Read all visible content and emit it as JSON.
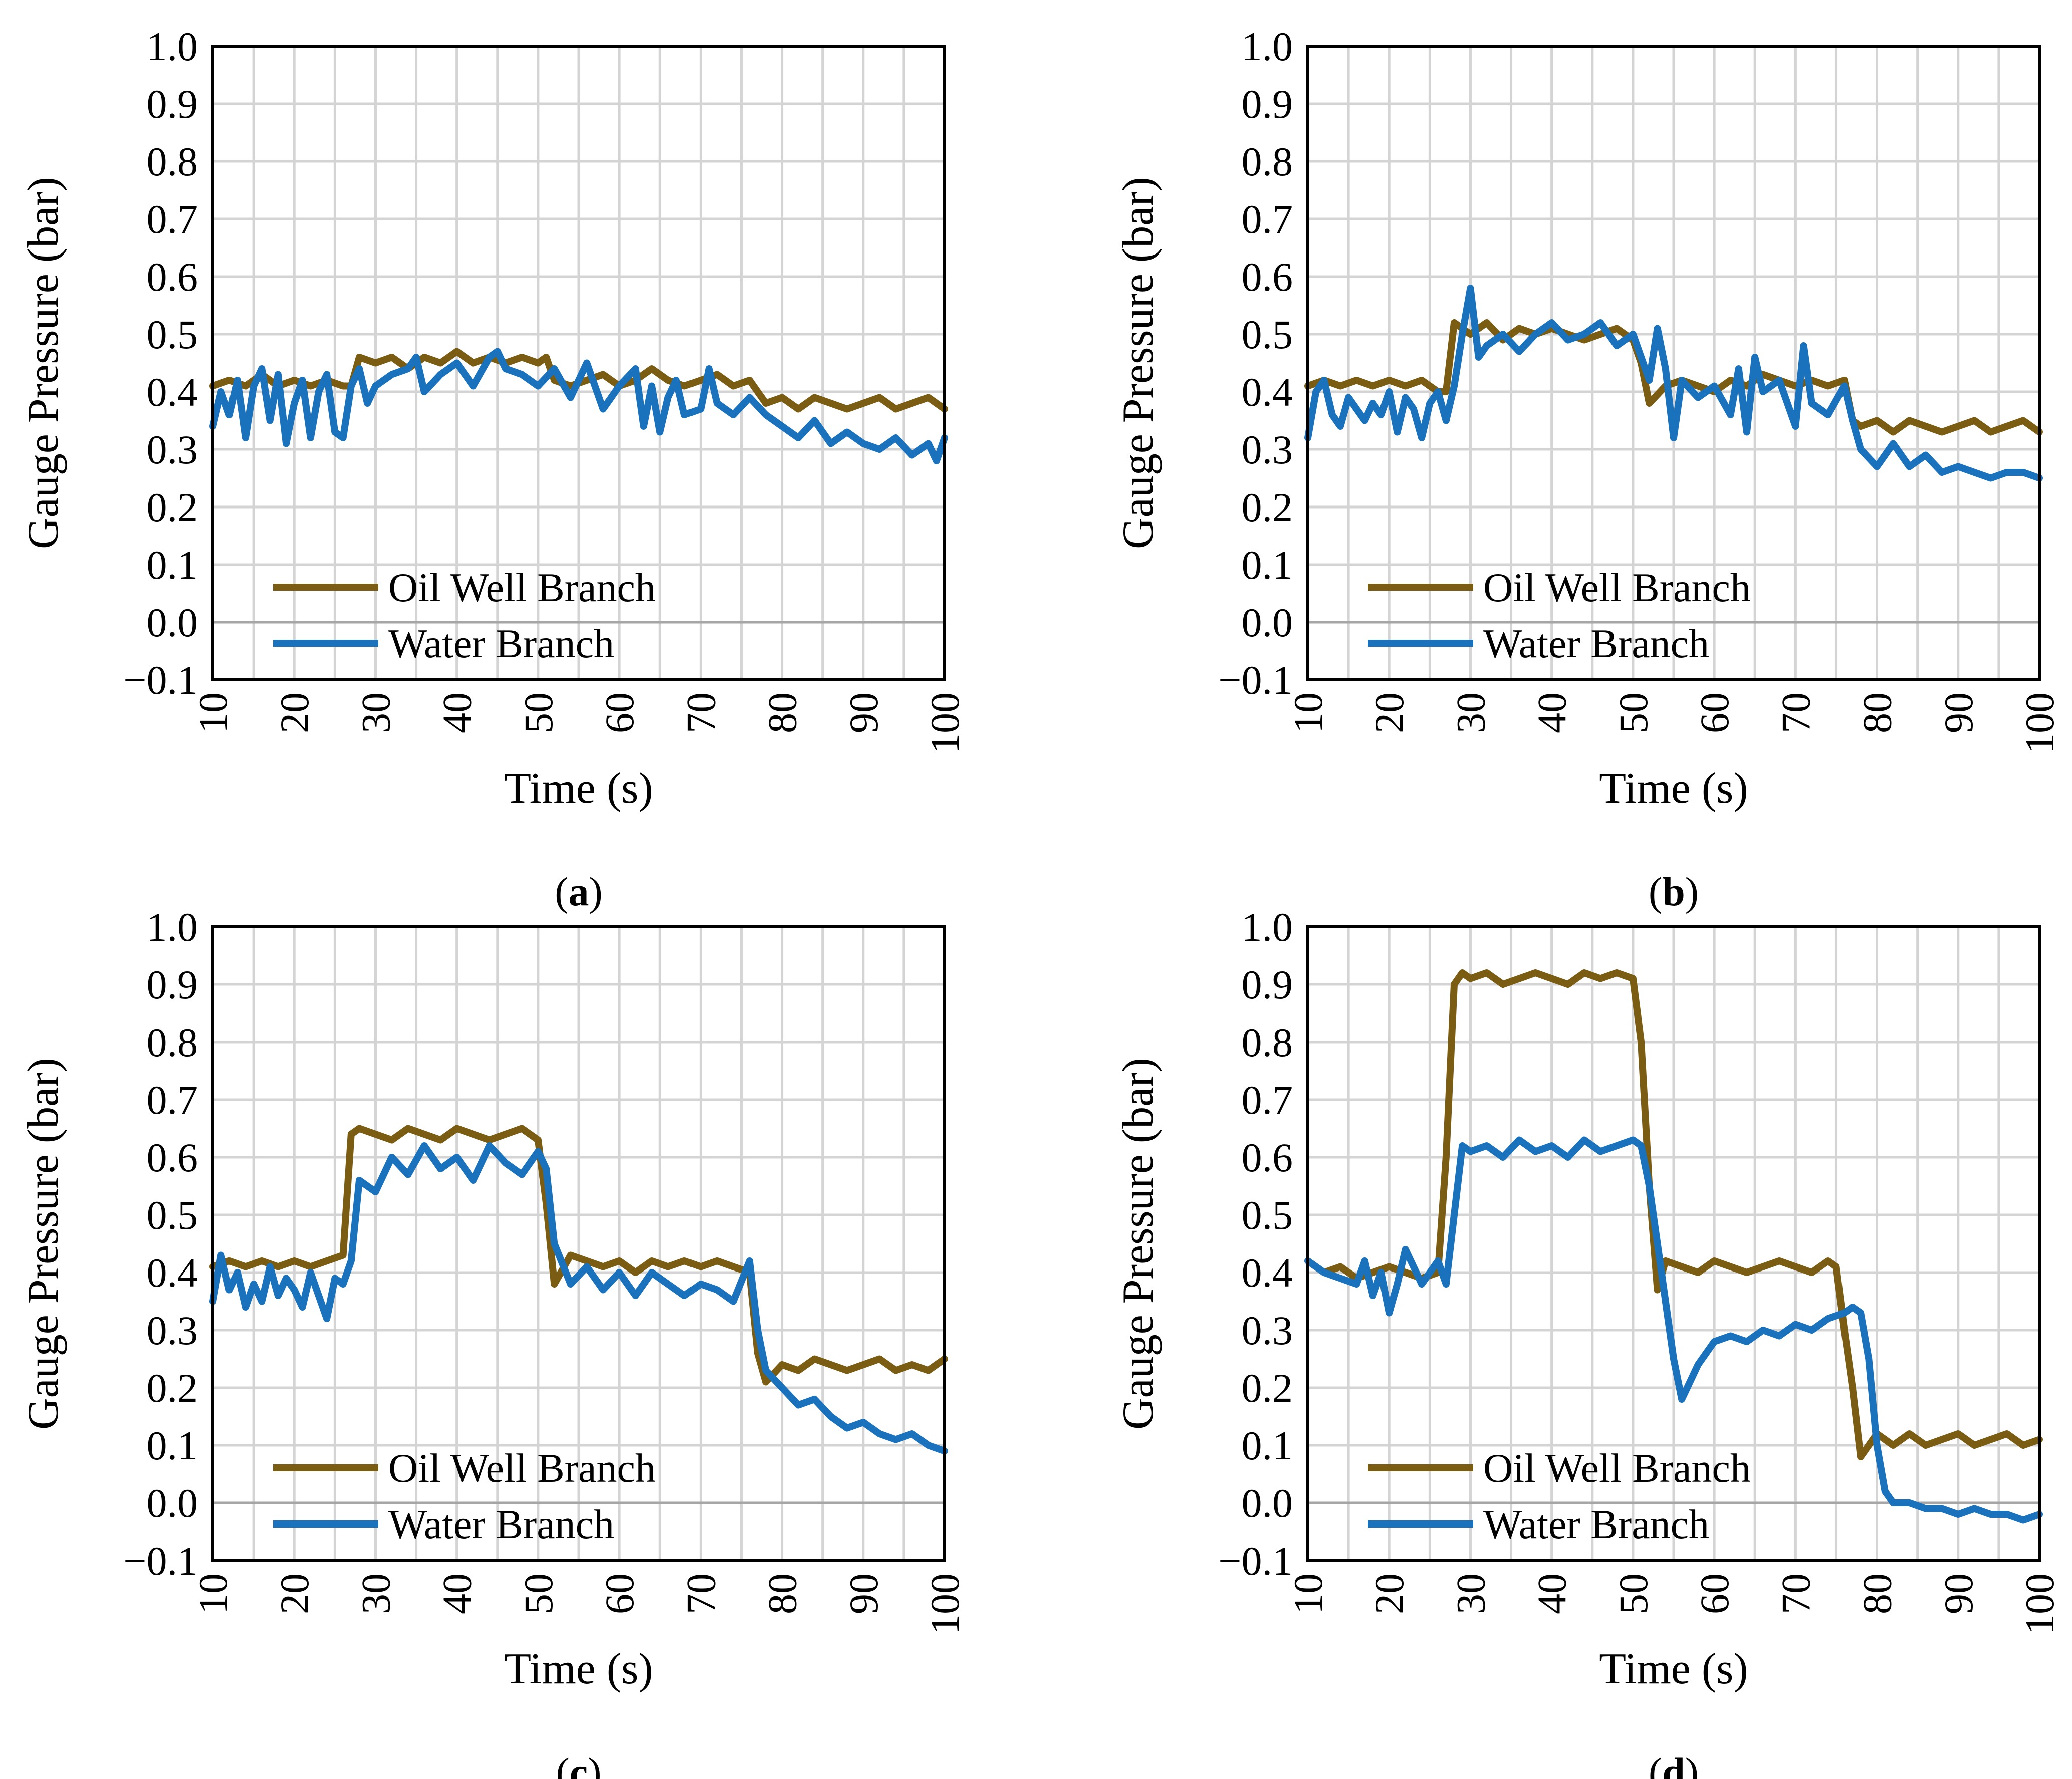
{
  "panel_labels": [
    "a",
    "b",
    "c",
    "d"
  ],
  "colors": {
    "oil": "#7a5c12",
    "water": "#1a72bd",
    "grid": "#d4d4d4",
    "zero_line": "#a6a6a6",
    "axis": "#000000"
  },
  "chart_data": [
    {
      "type": "line",
      "label": "a",
      "xlabel": "Time (s)",
      "ylabel": "Gauge Pressure (bar)",
      "xlim": [
        10,
        100
      ],
      "ylim": [
        -0.1,
        1.0
      ],
      "xticks": [
        "10",
        "20",
        "30",
        "40",
        "50",
        "60",
        "70",
        "80",
        "90",
        "100"
      ],
      "yticks": [
        "1.0",
        "0.9",
        "0.8",
        "0.7",
        "0.6",
        "0.5",
        "0.4",
        "0.3",
        "0.2",
        "0.1",
        "0.0",
        "−0.1"
      ],
      "grid": true,
      "legend": [
        "Oil Well Branch",
        "Water Branch"
      ],
      "series": [
        {
          "name": "Oil Well Branch",
          "color": "#7a5c12",
          "x": [
            10,
            12,
            14,
            16,
            18,
            20,
            22,
            24,
            26,
            27,
            28,
            30,
            32,
            34,
            36,
            38,
            40,
            42,
            44,
            46,
            48,
            50,
            51,
            52,
            54,
            56,
            58,
            60,
            62,
            64,
            66,
            68,
            70,
            72,
            74,
            76,
            77,
            78,
            80,
            82,
            84,
            86,
            88,
            90,
            92,
            94,
            96,
            98,
            100
          ],
          "y": [
            0.41,
            0.42,
            0.41,
            0.43,
            0.41,
            0.42,
            0.41,
            0.42,
            0.41,
            0.41,
            0.46,
            0.45,
            0.46,
            0.44,
            0.46,
            0.45,
            0.47,
            0.45,
            0.46,
            0.45,
            0.46,
            0.45,
            0.46,
            0.42,
            0.41,
            0.42,
            0.43,
            0.41,
            0.42,
            0.44,
            0.42,
            0.41,
            0.42,
            0.43,
            0.41,
            0.42,
            0.4,
            0.38,
            0.39,
            0.37,
            0.39,
            0.38,
            0.37,
            0.38,
            0.39,
            0.37,
            0.38,
            0.39,
            0.37
          ]
        },
        {
          "name": "Water Branch",
          "color": "#1a72bd",
          "x": [
            10,
            11,
            12,
            13,
            14,
            15,
            16,
            17,
            18,
            19,
            20,
            21,
            22,
            23,
            24,
            25,
            26,
            27,
            28,
            29,
            30,
            32,
            34,
            35,
            36,
            38,
            40,
            42,
            44,
            45,
            46,
            48,
            50,
            52,
            54,
            55,
            56,
            58,
            60,
            62,
            63,
            64,
            65,
            66,
            67,
            68,
            70,
            71,
            72,
            74,
            76,
            78,
            80,
            82,
            84,
            86,
            88,
            90,
            92,
            94,
            96,
            98,
            99,
            100
          ],
          "y": [
            0.34,
            0.4,
            0.36,
            0.42,
            0.32,
            0.41,
            0.44,
            0.35,
            0.43,
            0.31,
            0.38,
            0.42,
            0.32,
            0.4,
            0.43,
            0.33,
            0.32,
            0.41,
            0.44,
            0.38,
            0.41,
            0.43,
            0.44,
            0.46,
            0.4,
            0.43,
            0.45,
            0.41,
            0.46,
            0.47,
            0.44,
            0.43,
            0.41,
            0.44,
            0.39,
            0.42,
            0.45,
            0.37,
            0.41,
            0.44,
            0.34,
            0.41,
            0.33,
            0.39,
            0.42,
            0.36,
            0.37,
            0.44,
            0.38,
            0.36,
            0.39,
            0.36,
            0.34,
            0.32,
            0.35,
            0.31,
            0.33,
            0.31,
            0.3,
            0.32,
            0.29,
            0.31,
            0.28,
            0.32
          ]
        }
      ]
    },
    {
      "type": "line",
      "label": "b",
      "xlabel": "Time (s)",
      "ylabel": "Gauge Pressure (bar)",
      "xlim": [
        10,
        100
      ],
      "ylim": [
        -0.1,
        1.0
      ],
      "xticks": [
        "10",
        "20",
        "30",
        "40",
        "50",
        "60",
        "70",
        "80",
        "90",
        "100"
      ],
      "yticks": [
        "1.0",
        "0.9",
        "0.8",
        "0.7",
        "0.6",
        "0.5",
        "0.4",
        "0.3",
        "0.2",
        "0.1",
        "0.0",
        "−0.1"
      ],
      "grid": true,
      "legend": [
        "Oil Well Branch",
        "Water Branch"
      ],
      "series": [
        {
          "name": "Oil Well Branch",
          "color": "#7a5c12",
          "x": [
            10,
            12,
            14,
            16,
            18,
            20,
            22,
            24,
            26,
            27,
            28,
            30,
            32,
            34,
            36,
            38,
            40,
            42,
            44,
            46,
            48,
            50,
            51,
            52,
            54,
            56,
            58,
            60,
            62,
            64,
            66,
            68,
            70,
            72,
            74,
            76,
            77,
            78,
            80,
            82,
            84,
            86,
            88,
            90,
            92,
            94,
            96,
            98,
            100
          ],
          "y": [
            0.41,
            0.42,
            0.41,
            0.42,
            0.41,
            0.42,
            0.41,
            0.42,
            0.4,
            0.4,
            0.52,
            0.5,
            0.52,
            0.49,
            0.51,
            0.5,
            0.51,
            0.5,
            0.49,
            0.5,
            0.51,
            0.49,
            0.45,
            0.38,
            0.41,
            0.42,
            0.41,
            0.4,
            0.42,
            0.41,
            0.43,
            0.42,
            0.41,
            0.42,
            0.41,
            0.42,
            0.35,
            0.34,
            0.35,
            0.33,
            0.35,
            0.34,
            0.33,
            0.34,
            0.35,
            0.33,
            0.34,
            0.35,
            0.33
          ]
        },
        {
          "name": "Water Branch",
          "color": "#1a72bd",
          "x": [
            10,
            11,
            12,
            13,
            14,
            15,
            16,
            17,
            18,
            19,
            20,
            21,
            22,
            23,
            24,
            25,
            26,
            27,
            28,
            29,
            30,
            31,
            32,
            34,
            36,
            38,
            40,
            42,
            44,
            46,
            48,
            50,
            51,
            52,
            53,
            54,
            55,
            56,
            58,
            60,
            62,
            63,
            64,
            65,
            66,
            68,
            70,
            71,
            72,
            74,
            76,
            77,
            78,
            80,
            82,
            84,
            86,
            88,
            90,
            92,
            94,
            96,
            98,
            100
          ],
          "y": [
            0.32,
            0.4,
            0.42,
            0.36,
            0.34,
            0.39,
            0.37,
            0.35,
            0.38,
            0.36,
            0.4,
            0.33,
            0.39,
            0.37,
            0.32,
            0.38,
            0.4,
            0.35,
            0.41,
            0.5,
            0.58,
            0.46,
            0.48,
            0.5,
            0.47,
            0.5,
            0.52,
            0.49,
            0.5,
            0.52,
            0.48,
            0.5,
            0.46,
            0.42,
            0.51,
            0.44,
            0.32,
            0.42,
            0.39,
            0.41,
            0.36,
            0.44,
            0.33,
            0.46,
            0.4,
            0.42,
            0.34,
            0.48,
            0.38,
            0.36,
            0.41,
            0.35,
            0.3,
            0.27,
            0.31,
            0.27,
            0.29,
            0.26,
            0.27,
            0.26,
            0.25,
            0.26,
            0.26,
            0.25
          ]
        }
      ]
    },
    {
      "type": "line",
      "label": "c",
      "xlabel": "Time (s)",
      "ylabel": "Gauge Pressure (bar)",
      "xlim": [
        10,
        100
      ],
      "ylim": [
        -0.1,
        1.0
      ],
      "xticks": [
        "10",
        "20",
        "30",
        "40",
        "50",
        "60",
        "70",
        "80",
        "90",
        "100"
      ],
      "yticks": [
        "1.0",
        "0.9",
        "0.8",
        "0.7",
        "0.6",
        "0.5",
        "0.4",
        "0.3",
        "0.2",
        "0.1",
        "0.0",
        "−0.1"
      ],
      "grid": true,
      "legend": [
        "Oil Well Branch",
        "Water Branch"
      ],
      "series": [
        {
          "name": "Oil Well Branch",
          "color": "#7a5c12",
          "x": [
            10,
            12,
            14,
            16,
            18,
            20,
            22,
            24,
            26,
            27,
            28,
            30,
            32,
            34,
            36,
            38,
            40,
            42,
            44,
            46,
            48,
            50,
            51,
            52,
            54,
            56,
            58,
            60,
            62,
            64,
            66,
            68,
            70,
            72,
            74,
            76,
            77,
            78,
            80,
            82,
            84,
            86,
            88,
            90,
            92,
            94,
            96,
            98,
            100
          ],
          "y": [
            0.41,
            0.42,
            0.41,
            0.42,
            0.41,
            0.42,
            0.41,
            0.42,
            0.43,
            0.64,
            0.65,
            0.64,
            0.63,
            0.65,
            0.64,
            0.63,
            0.65,
            0.64,
            0.63,
            0.64,
            0.65,
            0.63,
            0.52,
            0.38,
            0.43,
            0.42,
            0.41,
            0.42,
            0.4,
            0.42,
            0.41,
            0.42,
            0.41,
            0.42,
            0.41,
            0.4,
            0.26,
            0.21,
            0.24,
            0.23,
            0.25,
            0.24,
            0.23,
            0.24,
            0.25,
            0.23,
            0.24,
            0.23,
            0.25
          ]
        },
        {
          "name": "Water Branch",
          "color": "#1a72bd",
          "x": [
            10,
            11,
            12,
            13,
            14,
            15,
            16,
            17,
            18,
            19,
            20,
            21,
            22,
            23,
            24,
            25,
            26,
            27,
            28,
            30,
            32,
            34,
            36,
            38,
            40,
            42,
            44,
            46,
            48,
            50,
            51,
            52,
            54,
            56,
            58,
            60,
            62,
            64,
            66,
            68,
            70,
            72,
            74,
            76,
            77,
            78,
            80,
            82,
            84,
            86,
            88,
            90,
            92,
            94,
            96,
            98,
            100
          ],
          "y": [
            0.35,
            0.43,
            0.37,
            0.4,
            0.34,
            0.38,
            0.35,
            0.41,
            0.36,
            0.39,
            0.37,
            0.34,
            0.4,
            0.36,
            0.32,
            0.39,
            0.38,
            0.42,
            0.56,
            0.54,
            0.6,
            0.57,
            0.62,
            0.58,
            0.6,
            0.56,
            0.62,
            0.59,
            0.57,
            0.61,
            0.58,
            0.45,
            0.38,
            0.41,
            0.37,
            0.4,
            0.36,
            0.4,
            0.38,
            0.36,
            0.38,
            0.37,
            0.35,
            0.42,
            0.3,
            0.23,
            0.2,
            0.17,
            0.18,
            0.15,
            0.13,
            0.14,
            0.12,
            0.11,
            0.12,
            0.1,
            0.09
          ]
        }
      ]
    },
    {
      "type": "line",
      "label": "d",
      "xlabel": "Time (s)",
      "ylabel": "Gauge Pressure (bar)",
      "xlim": [
        10,
        100
      ],
      "ylim": [
        -0.1,
        1.0
      ],
      "xticks": [
        "10",
        "20",
        "30",
        "40",
        "50",
        "60",
        "70",
        "80",
        "90",
        "100"
      ],
      "yticks": [
        "1.0",
        "0.9",
        "0.8",
        "0.7",
        "0.6",
        "0.5",
        "0.4",
        "0.3",
        "0.2",
        "0.1",
        "0.0",
        "−0.1"
      ],
      "grid": true,
      "legend": [
        "Oil Well Branch",
        "Water Branch"
      ],
      "series": [
        {
          "name": "Oil Well Branch",
          "color": "#7a5c12",
          "x": [
            10,
            12,
            14,
            16,
            18,
            20,
            22,
            24,
            26,
            27,
            28,
            29,
            30,
            32,
            34,
            36,
            38,
            40,
            42,
            44,
            46,
            48,
            50,
            51,
            52,
            53,
            54,
            56,
            58,
            60,
            62,
            64,
            66,
            68,
            70,
            72,
            74,
            75,
            76,
            77,
            78,
            80,
            82,
            84,
            86,
            88,
            90,
            92,
            94,
            96,
            98,
            100
          ],
          "y": [
            0.42,
            0.4,
            0.41,
            0.39,
            0.4,
            0.41,
            0.4,
            0.39,
            0.4,
            0.6,
            0.9,
            0.92,
            0.91,
            0.92,
            0.9,
            0.91,
            0.92,
            0.91,
            0.9,
            0.92,
            0.91,
            0.92,
            0.91,
            0.8,
            0.55,
            0.37,
            0.42,
            0.41,
            0.4,
            0.42,
            0.41,
            0.4,
            0.41,
            0.42,
            0.41,
            0.4,
            0.42,
            0.41,
            0.3,
            0.2,
            0.08,
            0.12,
            0.1,
            0.12,
            0.1,
            0.11,
            0.12,
            0.1,
            0.11,
            0.12,
            0.1,
            0.11
          ]
        },
        {
          "name": "Water Branch",
          "color": "#1a72bd",
          "x": [
            10,
            12,
            14,
            16,
            17,
            18,
            19,
            20,
            21,
            22,
            24,
            26,
            27,
            28,
            29,
            30,
            32,
            34,
            36,
            38,
            40,
            42,
            44,
            46,
            48,
            50,
            51,
            52,
            53,
            54,
            55,
            56,
            58,
            60,
            62,
            64,
            66,
            68,
            70,
            72,
            74,
            76,
            77,
            78,
            79,
            80,
            81,
            82,
            84,
            86,
            88,
            90,
            92,
            94,
            96,
            98,
            100
          ],
          "y": [
            0.42,
            0.4,
            0.39,
            0.38,
            0.42,
            0.36,
            0.4,
            0.33,
            0.38,
            0.44,
            0.38,
            0.42,
            0.38,
            0.5,
            0.62,
            0.61,
            0.62,
            0.6,
            0.63,
            0.61,
            0.62,
            0.6,
            0.63,
            0.61,
            0.62,
            0.63,
            0.62,
            0.55,
            0.45,
            0.35,
            0.25,
            0.18,
            0.24,
            0.28,
            0.29,
            0.28,
            0.3,
            0.29,
            0.31,
            0.3,
            0.32,
            0.33,
            0.34,
            0.33,
            0.25,
            0.1,
            0.02,
            0.0,
            0.0,
            -0.01,
            -0.01,
            -0.02,
            -0.01,
            -0.02,
            -0.02,
            -0.03,
            -0.02
          ]
        }
      ]
    }
  ]
}
